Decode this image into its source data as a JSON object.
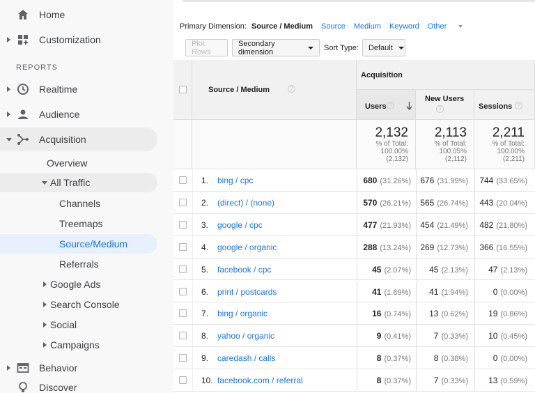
{
  "sidebar": {
    "home": "Home",
    "customization": "Customization",
    "reports_heading": "REPORTS",
    "realtime": "Realtime",
    "audience": "Audience",
    "acquisition": "Acquisition",
    "overview": "Overview",
    "all_traffic": "All Traffic",
    "channels": "Channels",
    "treemaps": "Treemaps",
    "source_medium": "Source/Medium",
    "referrals": "Referrals",
    "google_ads": "Google Ads",
    "search_console": "Search Console",
    "social": "Social",
    "campaigns": "Campaigns",
    "behavior": "Behavior",
    "discover": "Discover"
  },
  "dimension_bar": {
    "label": "Primary Dimension:",
    "active": "Source / Medium",
    "source": "Source",
    "medium": "Medium",
    "keyword": "Keyword",
    "other": "Other"
  },
  "toolbar": {
    "plot_rows": "Plot Rows",
    "secondary_dimension": "Secondary dimension",
    "sort_type_label": "Sort Type:",
    "sort_type_value": "Default"
  },
  "table": {
    "col_source": "Source / Medium",
    "group_acquisition": "Acquisition",
    "col_users": "Users",
    "col_new_users": "New Users",
    "col_sessions": "Sessions",
    "totals": {
      "users": {
        "value": "2,132",
        "pct_label": "% of Total:",
        "pct": "100.00%",
        "base": "(2,132)"
      },
      "new_users": {
        "value": "2,113",
        "pct_label": "% of Total:",
        "pct": "100.05%",
        "base": "(2,112)"
      },
      "sessions": {
        "value": "2,211",
        "pct_label": "% of Total:",
        "pct": "100.00%",
        "base": "(2,211)"
      }
    },
    "rows": [
      {
        "num": "1.",
        "source": "bing / cpc",
        "users": "680",
        "users_pct": "(31.26%)",
        "new": "676",
        "new_pct": "(31.99%)",
        "sess": "744",
        "sess_pct": "(33.65%)"
      },
      {
        "num": "2.",
        "source": "(direct) / (none)",
        "users": "570",
        "users_pct": "(26.21%)",
        "new": "565",
        "new_pct": "(26.74%)",
        "sess": "443",
        "sess_pct": "(20.04%)"
      },
      {
        "num": "3.",
        "source": "google / cpc",
        "users": "477",
        "users_pct": "(21.93%)",
        "new": "454",
        "new_pct": "(21.49%)",
        "sess": "482",
        "sess_pct": "(21.80%)"
      },
      {
        "num": "4.",
        "source": "google / organic",
        "users": "288",
        "users_pct": "(13.24%)",
        "new": "269",
        "new_pct": "(12.73%)",
        "sess": "366",
        "sess_pct": "(16.55%)"
      },
      {
        "num": "5.",
        "source": "facebook / cpc",
        "users": "45",
        "users_pct": "(2.07%)",
        "new": "45",
        "new_pct": "(2.13%)",
        "sess": "47",
        "sess_pct": "(2.13%)"
      },
      {
        "num": "6.",
        "source": "print / postcards",
        "users": "41",
        "users_pct": "(1.89%)",
        "new": "41",
        "new_pct": "(1.94%)",
        "sess": "0",
        "sess_pct": "(0.00%)"
      },
      {
        "num": "7.",
        "source": "bing / organic",
        "users": "16",
        "users_pct": "(0.74%)",
        "new": "13",
        "new_pct": "(0.62%)",
        "sess": "19",
        "sess_pct": "(0.86%)"
      },
      {
        "num": "8.",
        "source": "yahoo / organic",
        "users": "9",
        "users_pct": "(0.41%)",
        "new": "7",
        "new_pct": "(0.33%)",
        "sess": "10",
        "sess_pct": "(0.45%)"
      },
      {
        "num": "9.",
        "source": "caredash / calls",
        "users": "8",
        "users_pct": "(0.37%)",
        "new": "8",
        "new_pct": "(0.38%)",
        "sess": "0",
        "sess_pct": "(0.00%)"
      },
      {
        "num": "10.",
        "source": "facebook.com / referral",
        "users": "8",
        "users_pct": "(0.37%)",
        "new": "7",
        "new_pct": "(0.33%)",
        "sess": "13",
        "sess_pct": "(0.59%)"
      }
    ]
  }
}
